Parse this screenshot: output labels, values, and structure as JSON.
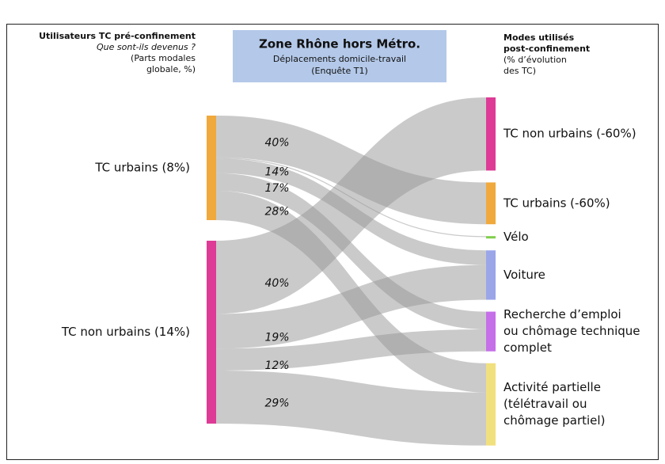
{
  "chart_data": {
    "type": "sankey",
    "left_header": {
      "title": "Utilisateurs TC pré-confinement",
      "subtitle": "Que sont-ils devenus ?",
      "note": [
        "(Parts modales",
        "globale, %)"
      ]
    },
    "center_header": {
      "title": "Zone Rhône hors Métro.",
      "lines": [
        "Déplacements domicile-travail",
        "(Enquête T1)"
      ]
    },
    "right_header": {
      "title": [
        "Modes utilisés",
        "post-confinement"
      ],
      "note": [
        "(% d’évolution",
        "des TC)"
      ]
    },
    "sources": [
      {
        "label": "TC urbains (8%)",
        "share": 8,
        "color": "#f0a93c"
      },
      {
        "label": "TC non urbains (14%)",
        "share": 14,
        "color": "#dd3b96"
      }
    ],
    "targets": [
      {
        "label": [
          "TC non urbains (-60%)"
        ],
        "color": "#dd3b96"
      },
      {
        "label": [
          "TC urbains (-60%)"
        ],
        "color": "#f0a93c"
      },
      {
        "label": [
          "Vélo"
        ],
        "color": "#7fcf4a"
      },
      {
        "label": [
          "Voiture"
        ],
        "color": "#9aa6e8"
      },
      {
        "label": [
          "Recherche d’emploi",
          "ou chômage technique",
          "complet"
        ],
        "color": "#c56fe8"
      },
      {
        "label": [
          "Activité partielle",
          "(télétravail ou",
          "chômage partiel)"
        ],
        "color": "#f1e07e"
      }
    ],
    "flows": [
      {
        "source": 0,
        "target": 1,
        "value": 40,
        "value_label": "40%"
      },
      {
        "source": 0,
        "target": 2,
        "value": 1,
        "value_label": null
      },
      {
        "source": 0,
        "target": 3,
        "value": 14,
        "value_label": "14%"
      },
      {
        "source": 0,
        "target": 4,
        "value": 17,
        "value_label": "17%"
      },
      {
        "source": 0,
        "target": 5,
        "value": 28,
        "value_label": "28%"
      },
      {
        "source": 1,
        "target": 0,
        "value": 40,
        "value_label": "40%"
      },
      {
        "source": 1,
        "target": 3,
        "value": 19,
        "value_label": "19%"
      },
      {
        "source": 1,
        "target": 4,
        "value": 12,
        "value_label": "12%"
      },
      {
        "source": 1,
        "target": 5,
        "value": 29,
        "value_label": "29%"
      }
    ]
  }
}
